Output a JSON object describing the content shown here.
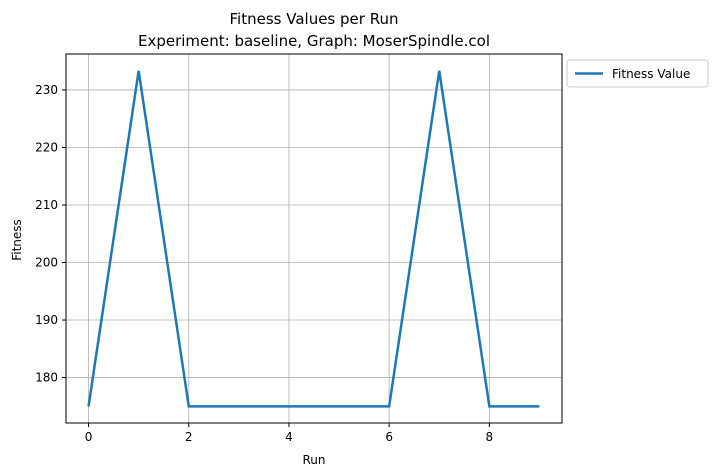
{
  "chart_data": {
    "type": "line",
    "title": "Fitness Values per Run",
    "subtitle": "Experiment: baseline, Graph: MoserSpindle.col",
    "xlabel": "Run",
    "ylabel": "Fitness",
    "x": [
      0,
      1,
      2,
      3,
      4,
      5,
      6,
      7,
      8,
      9
    ],
    "series": [
      {
        "name": "Fitness Value",
        "color": "#1f77b4",
        "values": [
          175,
          233.33,
          175,
          175,
          175,
          175,
          175,
          233.33,
          175,
          175
        ]
      }
    ],
    "xlim": [
      -0.45,
      9.45
    ],
    "ylim": [
      172.1,
      236.25
    ],
    "xticks": [
      0,
      2,
      4,
      6,
      8
    ],
    "yticks": [
      180,
      190,
      200,
      210,
      220,
      230
    ],
    "grid": true,
    "legend": "outside-top-right"
  }
}
